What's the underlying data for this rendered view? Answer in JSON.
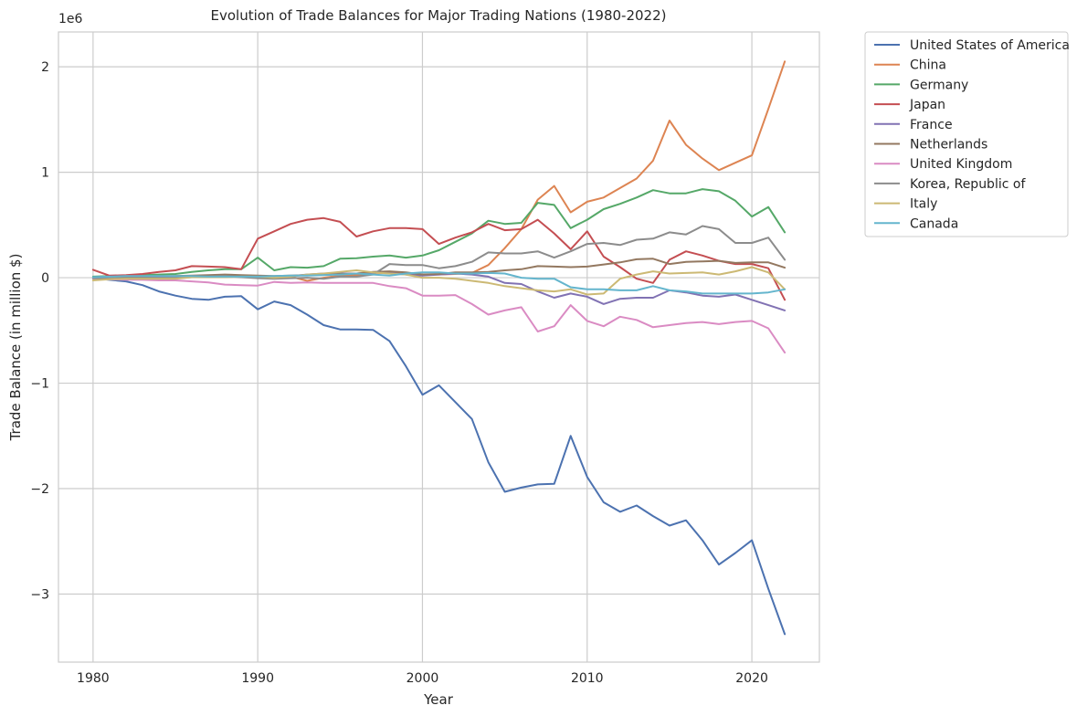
{
  "chart_data": {
    "type": "line",
    "title": "Evolution of Trade Balances for Major Trading Nations (1980-2022)",
    "xlabel": "Year",
    "ylabel": "Trade Balance (in million $)",
    "y_offset_label": "1e6",
    "y_scale_factor": 1000000,
    "xlim": [
      1977.9,
      2024.1
    ],
    "ylim": [
      -3645000,
      2330000
    ],
    "x_ticks": [
      1980,
      1990,
      2000,
      2010,
      2020
    ],
    "y_ticks": [
      -3,
      -2,
      -1,
      0,
      1,
      2
    ],
    "y_tick_labels": [
      "−3",
      "−2",
      "−1",
      "0",
      "1",
      "2"
    ],
    "grid": true,
    "legend_position": "outside-top-right",
    "x": [
      1980,
      1981,
      1982,
      1983,
      1984,
      1985,
      1986,
      1987,
      1988,
      1989,
      1990,
      1991,
      1992,
      1993,
      1994,
      1995,
      1996,
      1997,
      1998,
      1999,
      2000,
      2001,
      2002,
      2003,
      2004,
      2005,
      2006,
      2007,
      2008,
      2009,
      2010,
      2011,
      2012,
      2013,
      2014,
      2015,
      2016,
      2017,
      2018,
      2019,
      2020,
      2021,
      2022
    ],
    "series": [
      {
        "name": "United States of America",
        "color": "#4c72b0",
        "values": [
          -5000,
          -20000,
          -35000,
          -70000,
          -130000,
          -170000,
          -200000,
          -210000,
          -180000,
          -175000,
          -300000,
          -225000,
          -260000,
          -350000,
          -450000,
          -490000,
          -490000,
          -495000,
          -600000,
          -840000,
          -1110000,
          -1020000,
          -1180000,
          -1340000,
          -1750000,
          -2030000,
          -1990000,
          -1960000,
          -1955000,
          -1500000,
          -1890000,
          -2130000,
          -2220000,
          -2160000,
          -2260000,
          -2350000,
          -2300000,
          -2490000,
          -2720000,
          -2610000,
          -2490000,
          -2950000,
          -3380000
        ]
      },
      {
        "name": "China",
        "color": "#dd8452",
        "values": [
          -5000,
          0,
          5000,
          10000,
          10000,
          15000,
          15000,
          15000,
          20000,
          10000,
          10000,
          10000,
          10000,
          -30000,
          0,
          20000,
          25000,
          45000,
          45000,
          35000,
          30000,
          30000,
          35000,
          45000,
          120000,
          280000,
          460000,
          740000,
          870000,
          620000,
          720000,
          760000,
          850000,
          940000,
          1110000,
          1490000,
          1260000,
          1130000,
          1020000,
          1090000,
          1160000,
          1600000,
          2050000
        ]
      },
      {
        "name": "Germany",
        "color": "#55a868",
        "values": [
          10000,
          15000,
          20000,
          25000,
          30000,
          35000,
          55000,
          70000,
          80000,
          80000,
          190000,
          70000,
          100000,
          95000,
          110000,
          180000,
          185000,
          200000,
          210000,
          190000,
          210000,
          260000,
          340000,
          420000,
          540000,
          510000,
          520000,
          710000,
          690000,
          470000,
          550000,
          650000,
          700000,
          760000,
          830000,
          800000,
          800000,
          840000,
          820000,
          730000,
          580000,
          670000,
          430000
        ]
      },
      {
        "name": "Japan",
        "color": "#c44e52",
        "values": [
          75000,
          20000,
          25000,
          35000,
          55000,
          70000,
          110000,
          105000,
          100000,
          80000,
          370000,
          440000,
          510000,
          550000,
          565000,
          530000,
          390000,
          440000,
          470000,
          470000,
          460000,
          320000,
          380000,
          430000,
          510000,
          450000,
          460000,
          550000,
          420000,
          270000,
          440000,
          200000,
          100000,
          -10000,
          -50000,
          170000,
          250000,
          210000,
          160000,
          130000,
          130000,
          90000,
          -210000
        ]
      },
      {
        "name": "France",
        "color": "#8172b3",
        "values": [
          5000,
          10000,
          10000,
          10000,
          10000,
          10000,
          15000,
          20000,
          25000,
          15000,
          10000,
          5000,
          15000,
          30000,
          40000,
          40000,
          40000,
          50000,
          45000,
          30000,
          20000,
          30000,
          40000,
          30000,
          10000,
          -50000,
          -60000,
          -130000,
          -190000,
          -150000,
          -180000,
          -250000,
          -200000,
          -190000,
          -190000,
          -120000,
          -140000,
          -170000,
          -180000,
          -160000,
          -210000,
          -260000,
          -310000
        ]
      },
      {
        "name": "Netherlands",
        "color": "#937860",
        "values": [
          0,
          5000,
          10000,
          10000,
          15000,
          15000,
          20000,
          25000,
          30000,
          25000,
          20000,
          15000,
          20000,
          25000,
          30000,
          35000,
          40000,
          55000,
          60000,
          50000,
          30000,
          35000,
          50000,
          50000,
          55000,
          70000,
          80000,
          110000,
          105000,
          100000,
          105000,
          125000,
          145000,
          175000,
          180000,
          130000,
          150000,
          155000,
          160000,
          140000,
          145000,
          145000,
          95000
        ]
      },
      {
        "name": "United Kingdom",
        "color": "#da8bc3",
        "values": [
          -10000,
          -15000,
          -20000,
          -20000,
          -25000,
          -25000,
          -35000,
          -45000,
          -65000,
          -70000,
          -75000,
          -40000,
          -50000,
          -45000,
          -50000,
          -50000,
          -50000,
          -50000,
          -80000,
          -100000,
          -170000,
          -170000,
          -165000,
          -250000,
          -350000,
          -310000,
          -280000,
          -510000,
          -460000,
          -260000,
          -410000,
          -460000,
          -370000,
          -400000,
          -470000,
          -450000,
          -430000,
          -420000,
          -440000,
          -420000,
          -410000,
          -480000,
          -710000
        ]
      },
      {
        "name": "Korea, Republic of",
        "color": "#8c8c8c",
        "values": [
          -5000,
          -5000,
          -5000,
          -5000,
          -5000,
          0,
          5000,
          10000,
          15000,
          5000,
          -5000,
          -10000,
          -5000,
          0,
          -10000,
          10000,
          10000,
          30000,
          130000,
          120000,
          120000,
          90000,
          110000,
          150000,
          240000,
          230000,
          230000,
          250000,
          190000,
          250000,
          320000,
          330000,
          310000,
          360000,
          370000,
          430000,
          410000,
          490000,
          460000,
          330000,
          330000,
          380000,
          170000
        ]
      },
      {
        "name": "Italy",
        "color": "#ccb974",
        "values": [
          -25000,
          -15000,
          -10000,
          -10000,
          -10000,
          -10000,
          5000,
          5000,
          5000,
          10000,
          10000,
          0,
          10000,
          30000,
          40000,
          55000,
          70000,
          50000,
          40000,
          30000,
          0,
          0,
          -10000,
          -30000,
          -50000,
          -80000,
          -100000,
          -120000,
          -130000,
          -110000,
          -160000,
          -150000,
          -10000,
          30000,
          60000,
          40000,
          45000,
          50000,
          30000,
          60000,
          100000,
          50000,
          -110000
        ]
      },
      {
        "name": "Canada",
        "color": "#64b5cd",
        "values": [
          5000,
          10000,
          15000,
          15000,
          15000,
          15000,
          15000,
          10000,
          10000,
          10000,
          10000,
          15000,
          20000,
          20000,
          25000,
          30000,
          40000,
          30000,
          20000,
          40000,
          50000,
          50000,
          40000,
          40000,
          45000,
          40000,
          0,
          -10000,
          -10000,
          -90000,
          -110000,
          -110000,
          -120000,
          -120000,
          -80000,
          -120000,
          -130000,
          -150000,
          -150000,
          -150000,
          -150000,
          -140000,
          -110000
        ]
      }
    ]
  }
}
